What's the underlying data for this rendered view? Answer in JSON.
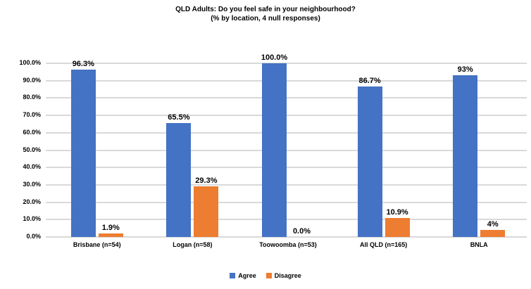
{
  "title": "QLD Adults: Do you feel safe in your neighbourhood?",
  "subtitle": "(% by location, 4 null responses)",
  "chart_data": {
    "type": "bar",
    "categories": [
      "Brisbane (n=54)",
      "Logan (n=58)",
      "Toowoomba (n=53)",
      "All QLD (n=165)",
      "BNLA"
    ],
    "series": [
      {
        "name": "Agree",
        "color": "#4472c4",
        "values": [
          96.3,
          65.5,
          100.0,
          86.7,
          93
        ],
        "labels": [
          "96.3%",
          "65.5%",
          "100.0%",
          "86.7%",
          "93%"
        ]
      },
      {
        "name": "Disagree",
        "color": "#ed7d31",
        "values": [
          1.9,
          29.3,
          0.0,
          10.9,
          4
        ],
        "labels": [
          "1.9%",
          "29.3%",
          "0.0%",
          "10.9%",
          "4%"
        ]
      }
    ],
    "xlabel": "",
    "ylabel": "",
    "ylim": [
      0,
      100
    ],
    "ytick_step": 10,
    "ytick_labels": [
      "0.0%",
      "10.0%",
      "20.0%",
      "30.0%",
      "40.0%",
      "50.0%",
      "60.0%",
      "70.0%",
      "80.0%",
      "90.0%",
      "100.0%"
    ],
    "grid": true,
    "gridline_color": "#d9d9d9",
    "legend_position": "bottom"
  }
}
